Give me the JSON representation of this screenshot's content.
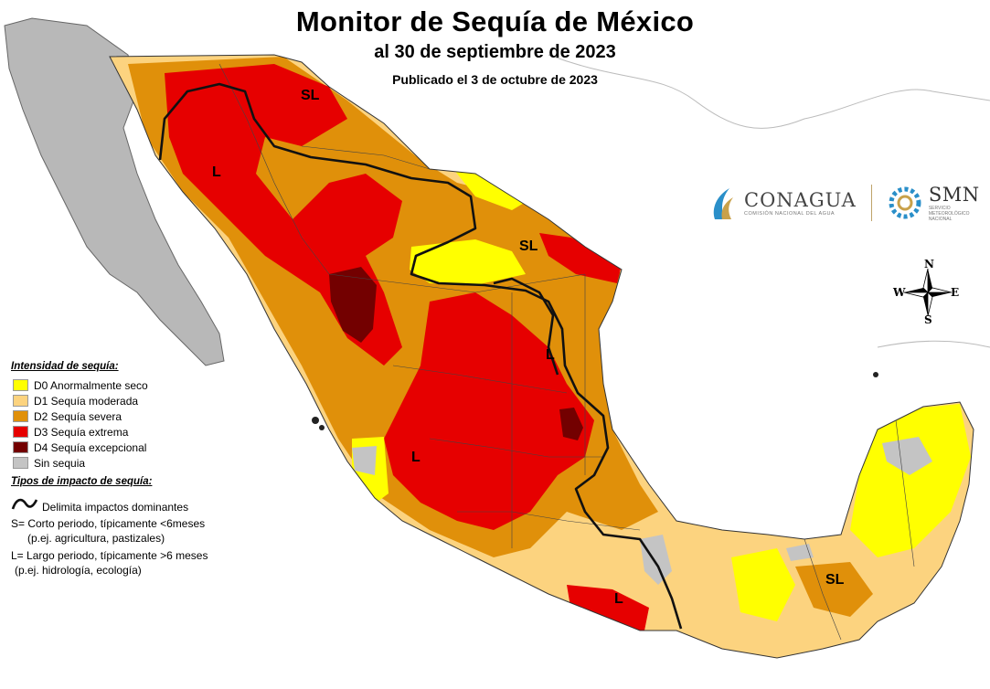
{
  "header": {
    "title": "Monitor de Sequía de México",
    "subtitle": "al 30 de septiembre de 2023",
    "published": "Publicado el 3 de octubre de 2023"
  },
  "legend": {
    "intensity_heading": "Intensidad de sequía:",
    "items": [
      {
        "label": "D0 Anormalmente seco",
        "color": "#ffff00"
      },
      {
        "label": "D1 Sequía moderada",
        "color": "#fcd37f"
      },
      {
        "label": "D2 Sequía severa",
        "color": "#e0900a"
      },
      {
        "label": "D3 Sequía extrema",
        "color": "#e60000"
      },
      {
        "label": "D4 Sequía excepcional",
        "color": "#730000"
      },
      {
        "label": "Sin sequia",
        "color": "#c4c4c4"
      }
    ],
    "impact_heading": "Tipos de impacto de sequía:",
    "impact_line": "Delimita impactos dominantes",
    "short_term": "S= Corto periodo, típicamente <6meses",
    "short_term_example": "(p.ej. agricultura, pastizales)",
    "long_term": "L= Largo periodo, típicamente >6 meses",
    "long_term_example": "(p.ej. hidrología, ecología)"
  },
  "map_labels": [
    "SL",
    "L",
    "SL",
    "L",
    "L",
    "L",
    "SL"
  ],
  "compass": {
    "n": "N",
    "s": "S",
    "e": "E",
    "w": "W"
  },
  "logos": {
    "conagua": "CONAGUA",
    "conagua_sub": "COMISIÓN NACIONAL DEL AGUA",
    "smn": "SMN",
    "smn_sub_1": "SERVICIO",
    "smn_sub_2": "METEOROLÓGICO",
    "smn_sub_3": "NACIONAL"
  },
  "colors": {
    "sea": "#ffffff",
    "baja_relief": "#b8b8b8",
    "boundary": "#111111"
  }
}
